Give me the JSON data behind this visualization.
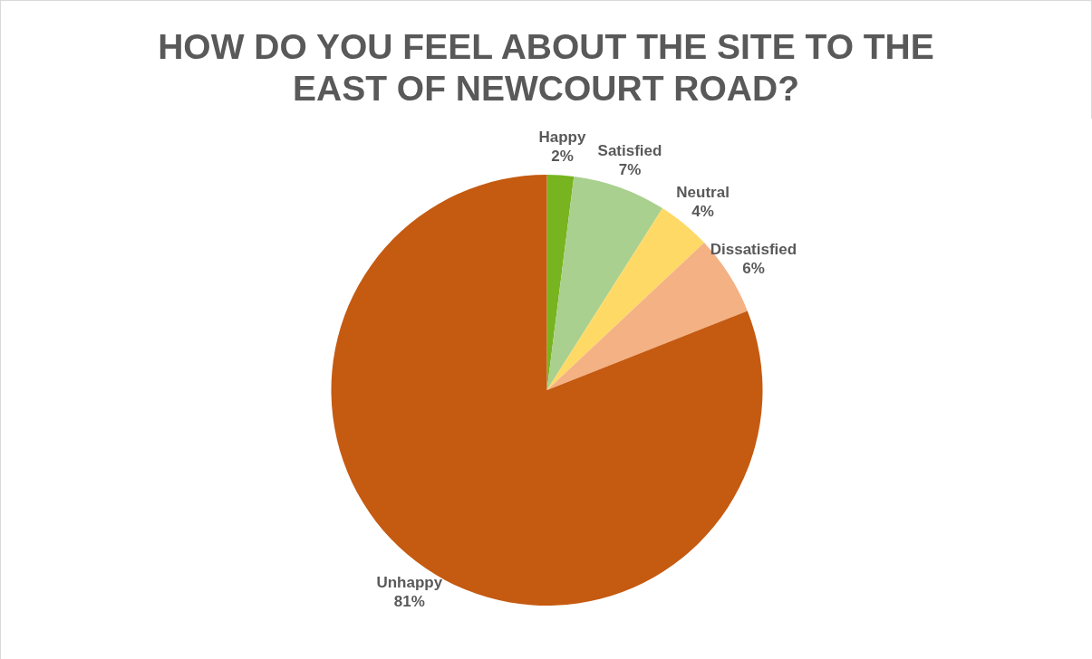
{
  "chart_data": {
    "type": "pie",
    "title": "HOW DO YOU FEEL ABOUT THE SITE TO THE EAST OF NEWCOURT ROAD?",
    "categories": [
      "Happy",
      "Satisfied",
      "Neutral",
      "Dissatisfied",
      "Unhappy"
    ],
    "values": [
      2,
      7,
      4,
      6,
      81
    ],
    "value_labels": [
      "2%",
      "7%",
      "4%",
      "6%",
      "81%"
    ],
    "colors": [
      "#77b41f",
      "#a9d08e",
      "#ffd966",
      "#f4b183",
      "#c55a11"
    ]
  }
}
